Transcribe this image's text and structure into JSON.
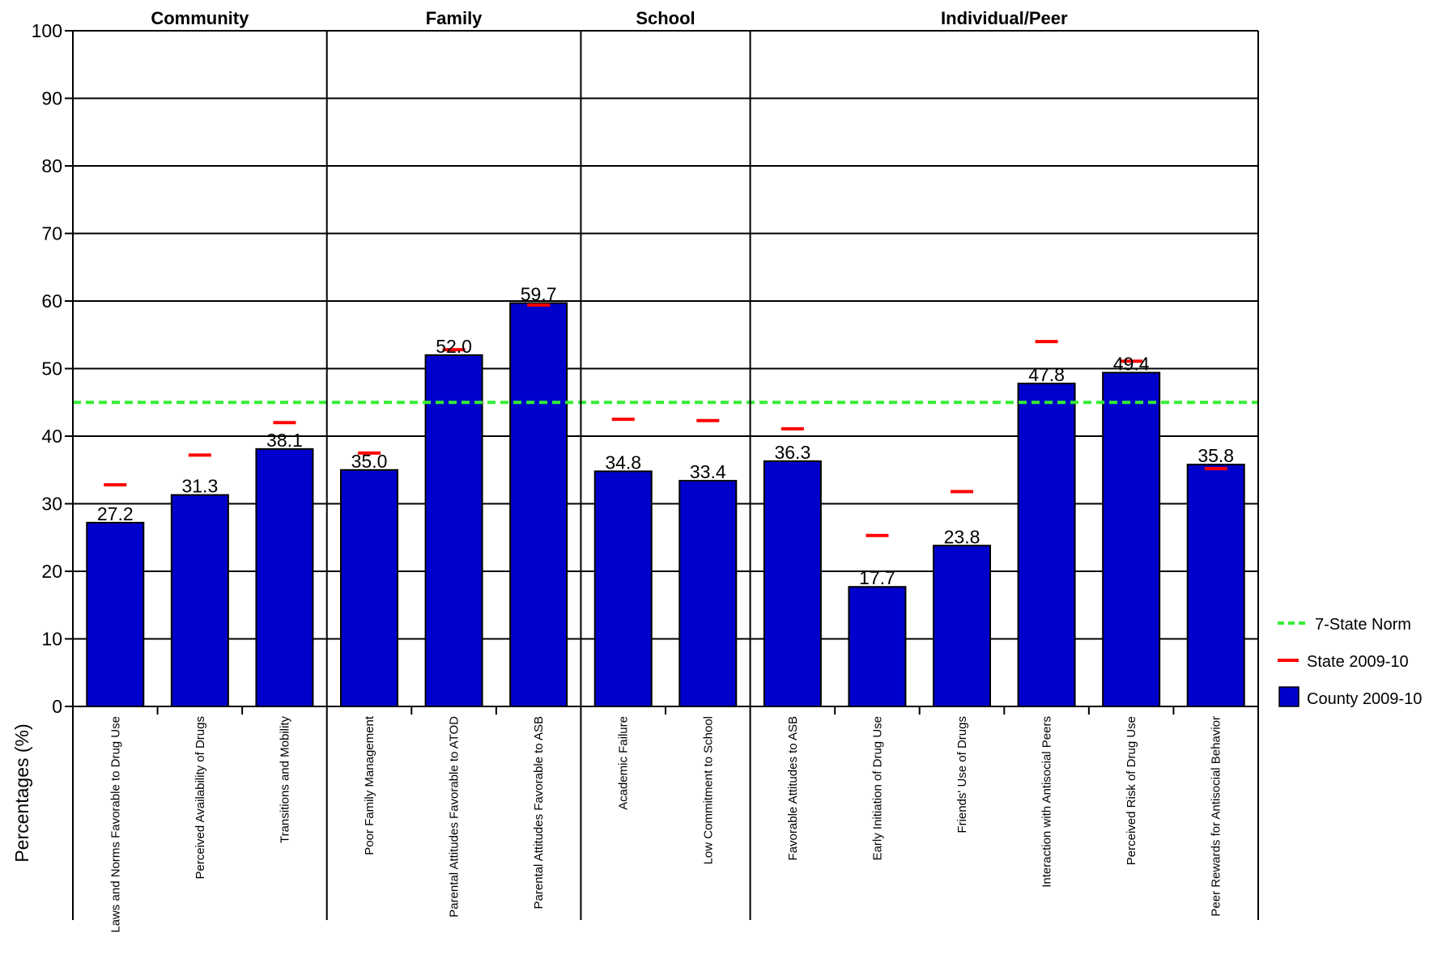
{
  "chart_data": {
    "type": "bar",
    "ylabel": "Percentages (%)",
    "ylim": [
      0,
      100
    ],
    "yticks": [
      0,
      10,
      20,
      30,
      40,
      50,
      60,
      70,
      80,
      90,
      100
    ],
    "grid": true,
    "legend_position": "right",
    "groups": [
      {
        "name": "Community",
        "start": 0,
        "count": 3
      },
      {
        "name": "Family",
        "start": 3,
        "count": 3
      },
      {
        "name": "School",
        "start": 6,
        "count": 2
      },
      {
        "name": "Individual/Peer",
        "start": 8,
        "count": 6
      }
    ],
    "categories": [
      "Laws and Norms Favorable to Drug Use",
      "Perceived Availability of Drugs",
      "Transitions and Mobility",
      "Poor Family Management",
      "Parental Attitudes Favorable to ATOD",
      "Parental Attitudes Favorable to ASB",
      "Academic Failure",
      "Low Commitment to School",
      "Favorable Attitudes to ASB",
      "Early Initiation of Drug Use",
      "Friends' Use of Drugs",
      "Interaction with Antisocial Peers",
      "Perceived Risk of Drug Use",
      "Peer Rewards for Antisocial Behavior"
    ],
    "series": [
      {
        "name": "County 2009-10",
        "type": "bar",
        "color": "#0000CC",
        "values": [
          27.2,
          31.3,
          38.1,
          35.0,
          52.0,
          59.7,
          34.8,
          33.4,
          36.3,
          17.7,
          23.8,
          47.8,
          49.4,
          35.8
        ],
        "labels": [
          "27.2",
          "31.3",
          "38.1",
          "35.0",
          "52.0",
          "59.7",
          "34.8",
          "33.4",
          "36.3",
          "17.7",
          "23.8",
          "47.8",
          "49.4",
          "35.8"
        ]
      },
      {
        "name": "State 2009-10",
        "type": "marker",
        "color": "#FF0000",
        "values": [
          32.8,
          37.2,
          42.0,
          37.5,
          52.8,
          59.4,
          42.5,
          42.3,
          41.1,
          25.3,
          31.8,
          54.0,
          51.1,
          35.2
        ]
      },
      {
        "name": "7-State Norm",
        "type": "reference-line",
        "color": "#33EE33",
        "value": 45
      }
    ],
    "legend": [
      {
        "label": "7-State Norm",
        "color": "#33EE33",
        "style": "dashed-line"
      },
      {
        "label": "State 2009-10",
        "color": "#FF0000",
        "style": "dash-marker"
      },
      {
        "label": "County 2009-10",
        "color": "#0000CC",
        "style": "box"
      }
    ]
  }
}
